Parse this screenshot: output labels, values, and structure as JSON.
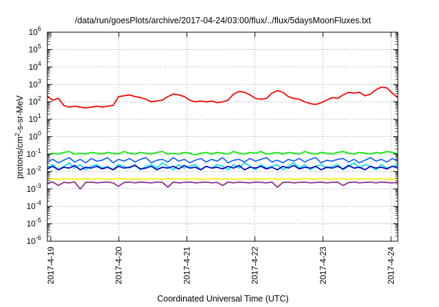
{
  "chart_data": {
    "type": "line",
    "title": "/data/run/goesPlots/archive/2017-04-24/03:00/flux/../flux/5daysMoonFluxes.txt",
    "xlabel": "Coordinated Universal Time (UTC)",
    "ylabel_parts": [
      "protons/cm",
      "2",
      "-s-sr-MeV"
    ],
    "y_scale": "log",
    "ylim_exp": [
      -6,
      6
    ],
    "y_tick_exponents": [
      -6,
      -5,
      -4,
      -3,
      -2,
      -1,
      0,
      1,
      2,
      3,
      4,
      5,
      6
    ],
    "xlim_days": [
      0,
      5.15
    ],
    "x_tick_labels": [
      "2017-4-19",
      "2017-4-20",
      "2017-4-21",
      "2017-4-22",
      "2017-4-23",
      "2017-4-24"
    ],
    "grid": true,
    "legend": "none",
    "series": [
      {
        "color": "#ff0000",
        "values_log10": [
          2.3,
          2.1,
          2.2,
          1.8,
          1.7,
          1.75,
          1.7,
          1.65,
          1.7,
          1.75,
          1.7,
          1.75,
          1.8,
          2.3,
          2.35,
          2.4,
          2.3,
          2.25,
          2.15,
          2.0,
          2.05,
          2.1,
          2.3,
          2.45,
          2.4,
          2.3,
          2.1,
          2.0,
          2.05,
          2.0,
          2.05,
          1.95,
          2.0,
          2.1,
          2.45,
          2.6,
          2.55,
          2.4,
          2.2,
          2.15,
          2.2,
          2.5,
          2.65,
          2.55,
          2.3,
          2.2,
          2.15,
          2.0,
          1.9,
          1.85,
          1.95,
          2.1,
          2.25,
          2.2,
          2.4,
          2.55,
          2.5,
          2.55,
          2.35,
          2.45,
          2.7,
          2.85,
          2.8,
          2.5,
          2.25
        ]
      },
      {
        "color": "#00ee00",
        "values_log10": [
          -1.05,
          -0.95,
          -1.0,
          -0.9,
          -0.85,
          -1.0,
          -0.95,
          -1.0,
          -0.9,
          -0.95,
          -1.0,
          -0.9,
          -0.95,
          -1.0,
          -0.85,
          -0.95,
          -1.0,
          -0.9,
          -0.95,
          -1.0,
          -0.9,
          -0.85,
          -1.0,
          -0.95,
          -1.0,
          -0.9,
          -0.95,
          -1.05,
          -0.95,
          -0.9,
          -1.0,
          -0.9,
          -0.95,
          -1.0,
          -0.85,
          -0.95,
          -1.0,
          -0.9,
          -0.95,
          -0.85,
          -1.0,
          -0.95,
          -0.9,
          -1.0,
          -0.9,
          -0.95,
          -1.0,
          -0.85,
          -0.95,
          -1.0,
          -0.9,
          -0.95,
          -1.0,
          -0.9,
          -0.85,
          -0.95,
          -1.0,
          -0.9,
          -0.95,
          -1.0,
          -0.9,
          -0.95,
          -0.85,
          -0.9,
          -1.0
        ]
      },
      {
        "color": "#00dddd",
        "values_log10": [
          -1.8,
          -1.6,
          -1.9,
          -1.7,
          -1.5,
          -1.8,
          -1.6,
          -1.9,
          -1.7,
          -1.6,
          -1.8,
          -1.7,
          -1.9,
          -1.6,
          -1.7,
          -1.8,
          -1.6,
          -1.9,
          -1.7,
          -1.6,
          -1.8,
          -1.5,
          -1.7,
          -1.9,
          -1.6,
          -1.8,
          -1.7,
          -1.6,
          -1.9,
          -1.7,
          -1.8,
          -1.6,
          -1.7,
          -1.9,
          -1.6,
          -1.8,
          -1.5,
          -1.7,
          -1.9,
          -1.6,
          -1.8,
          -1.7,
          -1.6,
          -1.9,
          -1.7,
          -1.5,
          -1.8,
          -1.6,
          -1.9,
          -1.7,
          -1.6,
          -1.8,
          -1.7,
          -1.6,
          -1.9,
          -1.7,
          -1.5,
          -1.8,
          -1.6,
          -1.7,
          -1.9,
          -1.6,
          -1.8,
          -1.7,
          -1.6
        ]
      },
      {
        "color": "#1e64ff",
        "values_log10": [
          -1.45,
          -1.3,
          -1.5,
          -1.35,
          -1.2,
          -1.45,
          -1.3,
          -1.5,
          -1.25,
          -1.4,
          -1.35,
          -1.2,
          -1.5,
          -1.3,
          -1.4,
          -1.25,
          -1.45,
          -1.3,
          -1.2,
          -1.5,
          -1.35,
          -1.3,
          -1.45,
          -1.2,
          -1.4,
          -1.3,
          -1.5,
          -1.35,
          -1.25,
          -1.45,
          -1.3,
          -1.4,
          -1.2,
          -1.5,
          -1.35,
          -1.3,
          -1.45,
          -1.25,
          -1.4,
          -1.3,
          -1.2,
          -1.45,
          -1.35,
          -1.5,
          -1.3,
          -1.4,
          -1.25,
          -1.45,
          -1.3,
          -1.2,
          -1.5,
          -1.35,
          -1.4,
          -1.3,
          -1.25,
          -1.45,
          -1.3,
          -1.5,
          -1.35,
          -1.2,
          -1.4,
          -1.3,
          -1.45,
          -1.25,
          -1.4
        ]
      },
      {
        "color": "#0000cc",
        "values_log10": [
          -1.85,
          -1.7,
          -1.9,
          -1.75,
          -1.8,
          -1.65,
          -1.9,
          -1.75,
          -1.8,
          -1.7,
          -1.85,
          -1.75,
          -1.9,
          -1.7,
          -1.8,
          -1.75,
          -1.65,
          -1.85,
          -1.8,
          -1.7,
          -1.9,
          -1.75,
          -1.8,
          -1.7,
          -1.85,
          -1.65,
          -1.8,
          -1.75,
          -1.9,
          -1.7,
          -1.8,
          -1.75,
          -1.85,
          -1.7,
          -1.8,
          -1.65,
          -1.9,
          -1.75,
          -1.8,
          -1.7,
          -1.85,
          -1.75,
          -1.9,
          -1.7,
          -1.8,
          -1.65,
          -1.85,
          -1.75,
          -1.8,
          -1.7,
          -1.9,
          -1.75,
          -1.8,
          -1.7,
          -1.85,
          -1.65,
          -1.8,
          -1.75,
          -1.9,
          -1.7,
          -1.8,
          -1.75,
          -1.85,
          -1.7,
          -1.8
        ]
      },
      {
        "color": "#ffee00",
        "values_log10": [
          -2.45,
          -2.4,
          -2.45,
          -2.42,
          -2.4,
          -2.45,
          -2.43,
          -2.4,
          -2.45,
          -2.42,
          -2.4,
          -2.45,
          -2.43,
          -2.4,
          -2.42,
          -2.45,
          -2.4,
          -2.43,
          -2.45,
          -2.4,
          -2.42,
          -2.45,
          -2.4,
          -2.43,
          -2.4,
          -2.45,
          -2.42,
          -2.4,
          -2.45,
          -2.43,
          -2.4,
          -2.42,
          -2.45,
          -2.4,
          -2.43,
          -2.45,
          -2.4,
          -2.42,
          -2.45,
          -2.4,
          -2.43,
          -2.4,
          -2.45,
          -2.42,
          -2.4,
          -2.45,
          -2.43,
          -2.4,
          -2.42,
          -2.45,
          -2.4,
          -2.43,
          -2.45,
          -2.4,
          -2.42,
          -2.45,
          -2.4,
          -2.43,
          -2.4,
          -2.45,
          -2.42,
          -2.4,
          -2.45,
          -2.43,
          -2.4
        ]
      },
      {
        "color": "#8b2c8b",
        "values_log10": [
          -2.65,
          -2.6,
          -2.8,
          -2.62,
          -2.65,
          -2.6,
          -3.0,
          -2.63,
          -2.6,
          -2.65,
          -2.62,
          -2.6,
          -2.65,
          -2.85,
          -2.62,
          -2.6,
          -2.65,
          -2.6,
          -2.63,
          -2.65,
          -2.6,
          -2.62,
          -2.9,
          -2.6,
          -2.65,
          -2.62,
          -2.6,
          -2.65,
          -2.63,
          -2.6,
          -2.65,
          -2.62,
          -2.8,
          -2.6,
          -2.65,
          -2.6,
          -2.63,
          -2.65,
          -2.6,
          -2.62,
          -2.65,
          -2.6,
          -2.9,
          -2.63,
          -2.6,
          -2.65,
          -2.62,
          -2.6,
          -2.65,
          -2.63,
          -2.6,
          -2.65,
          -2.62,
          -2.6,
          -2.8,
          -2.63,
          -2.6,
          -2.65,
          -2.62,
          -2.6,
          -2.65,
          -2.6,
          -2.63,
          -2.65,
          -2.6
        ]
      }
    ]
  }
}
